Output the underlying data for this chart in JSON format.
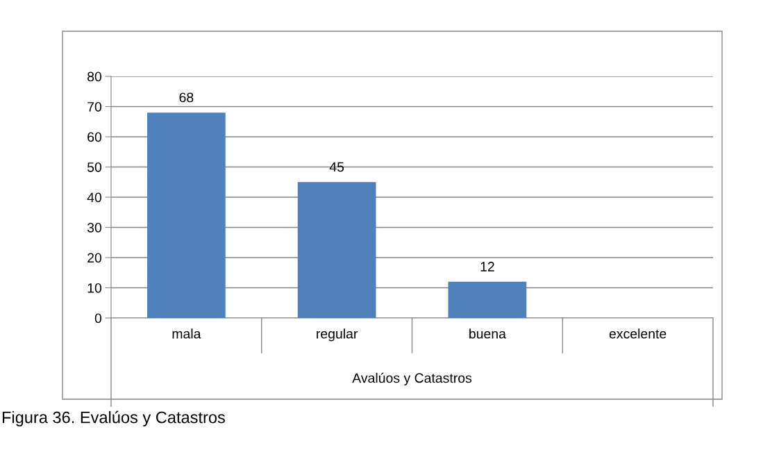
{
  "chart_data": {
    "type": "bar",
    "categories": [
      "mala",
      "regular",
      "buena",
      "excelente"
    ],
    "values": [
      68,
      45,
      12,
      null
    ],
    "color": "#4f81bd",
    "xlabel": "Avalúos y Catastros",
    "ylim": [
      0,
      80
    ],
    "yticks": [
      0,
      10,
      20,
      30,
      40,
      50,
      60,
      70,
      80
    ],
    "grid": "y",
    "data_labels": true,
    "annotations": [
      "Figura 36. Evalúos y Catastros"
    ]
  }
}
